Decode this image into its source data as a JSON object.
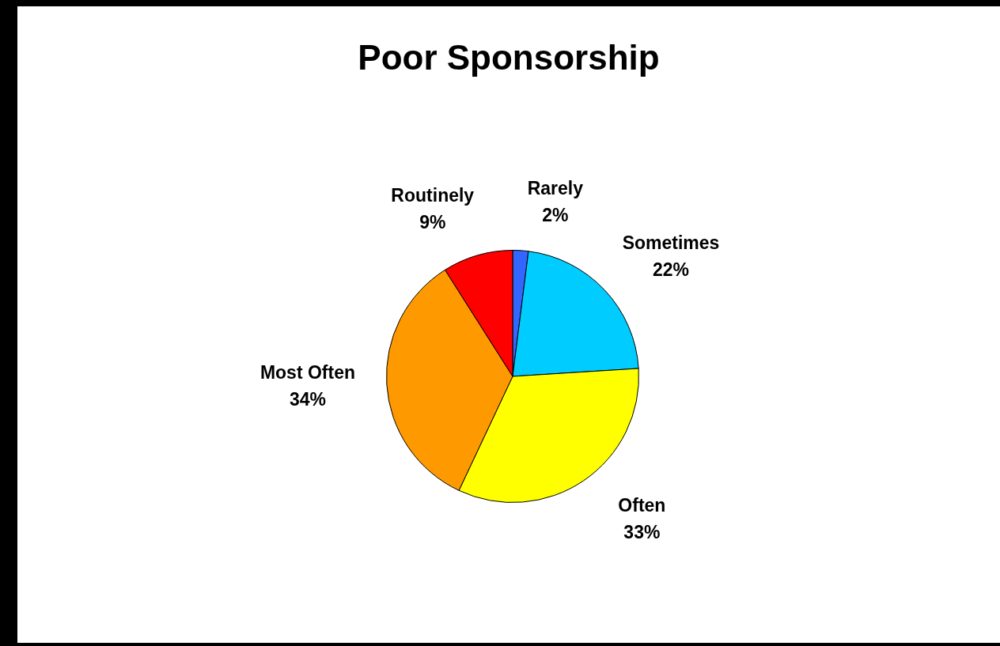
{
  "chart_data": {
    "type": "pie",
    "title": "Poor Sponsorship",
    "categories": [
      "Rarely",
      "Sometimes",
      "Often",
      "Most Often",
      "Routinely"
    ],
    "values": [
      2,
      22,
      33,
      34,
      9
    ],
    "colors": [
      "#3366ff",
      "#00ccff",
      "#ffff00",
      "#ff9900",
      "#ff0000"
    ],
    "value_labels": [
      "2%",
      "22%",
      "33%",
      "34%",
      "9%"
    ]
  }
}
